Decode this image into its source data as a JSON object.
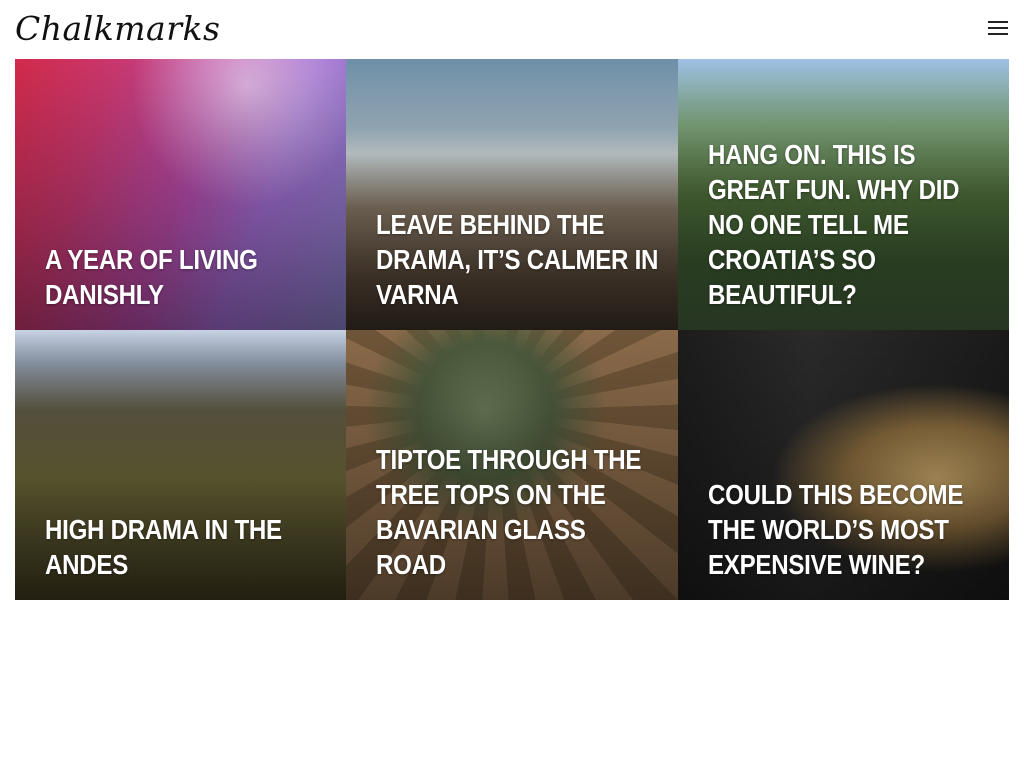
{
  "site": {
    "logo_text": "Chalkmarks",
    "menu_icon": "hamburger-menu-icon"
  },
  "posts": [
    {
      "title": "A YEAR OF LIVING DANISHLY"
    },
    {
      "title": "LEAVE BEHIND THE DRAMA, IT’S CALMER IN VARNA"
    },
    {
      "title": "HANG ON. THIS IS GREAT FUN. WHY DID NO ONE TELL ME CROATIA’S SO BEAUTIFUL?"
    },
    {
      "title": "HIGH DRAMA IN THE ANDES"
    },
    {
      "title": "TIPTOE THROUGH THE TREE TOPS ON THE BAVARIAN GLASS ROAD"
    },
    {
      "title": "COULD THIS BECOME THE WORLD’S MOST EXPENSIVE WINE?"
    }
  ]
}
